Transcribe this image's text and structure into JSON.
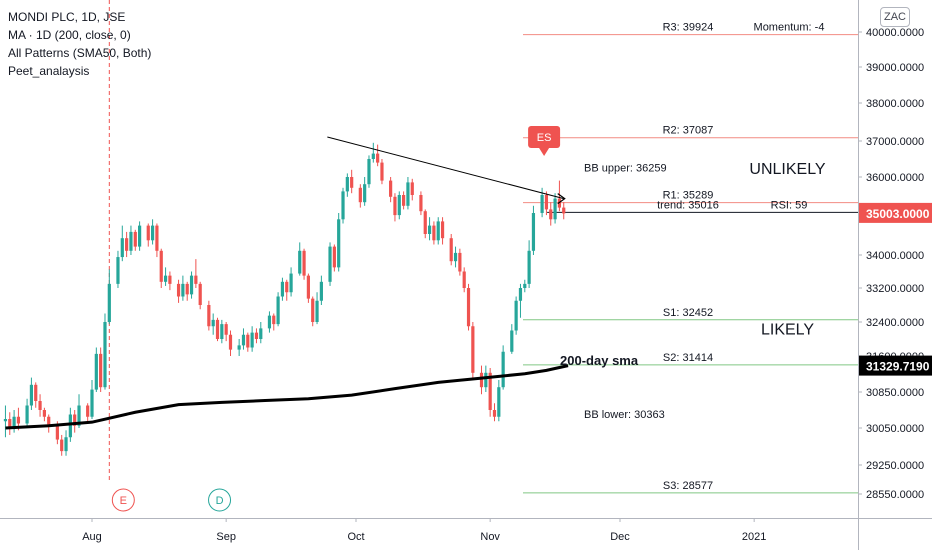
{
  "legend": {
    "title": "MONDI PLC, 1D, JSE",
    "indicators": [
      "MA · 1D (200, close, 0)",
      "All Patterns (SMA50, Both)",
      "Peet_analaysis"
    ]
  },
  "currency_label": "ZAC",
  "colors": {
    "up": "#26a69a",
    "down": "#ef5350",
    "resistance": "#f28b82",
    "support": "#81c784",
    "sma": "#000000",
    "trendline": "#000000",
    "price_badge": "#ef5350",
    "sma_badge": "#000000"
  },
  "chart_data": {
    "type": "candlestick",
    "title": "MONDI PLC, 1D, JSE",
    "y_axis": {
      "ylim": [
        28200,
        40600
      ],
      "ticks": [
        28550,
        29250,
        30050,
        30850,
        31600,
        32400,
        33200,
        34000,
        35000,
        36000,
        37000,
        38000,
        39000,
        40000
      ],
      "tick_labels": [
        "28550.0000",
        "29250.0000",
        "30050.0000",
        "30850.0000",
        "31600.0000",
        "32400.0000",
        "33200.0000",
        "34000.0000",
        "35000.0000",
        "36000.0000",
        "37000.0000",
        "38000.0000",
        "39000.0000",
        "40000.0000"
      ]
    },
    "x_axis": {
      "months": [
        {
          "label": "Aug",
          "day": 0
        },
        {
          "label": "Sep",
          "day": 31
        },
        {
          "label": "Oct",
          "day": 61
        },
        {
          "label": "Nov",
          "day": 92
        },
        {
          "label": "Dec",
          "day": 122
        },
        {
          "label": "2021",
          "day": 153
        }
      ],
      "day_range": [
        -20,
        174
      ]
    },
    "candles": [
      [
        -20,
        30200,
        30250,
        30550,
        29850
      ],
      [
        -19,
        30250,
        30050,
        30400,
        29900
      ],
      [
        -18,
        30050,
        30300,
        30450,
        29950
      ],
      [
        -17,
        30300,
        30150,
        30500,
        30000
      ],
      [
        -15,
        30150,
        30550,
        30700,
        30050
      ],
      [
        -14,
        30550,
        31000,
        31150,
        30450
      ],
      [
        -13,
        31000,
        30650,
        31050,
        30500
      ],
      [
        -12,
        30650,
        30450,
        30800,
        30300
      ],
      [
        -11,
        30450,
        30300,
        30500,
        30200
      ],
      [
        -10,
        30300,
        30100,
        30350,
        29950
      ],
      [
        -8,
        30100,
        29800,
        30200,
        29700
      ],
      [
        -7,
        29800,
        29550,
        29900,
        29450
      ],
      [
        -6,
        29550,
        29850,
        30000,
        29450
      ],
      [
        -5,
        29850,
        30350,
        30500,
        29750
      ],
      [
        -4,
        30350,
        30100,
        30450,
        29950
      ],
      [
        -3,
        30100,
        30550,
        30800,
        30050
      ],
      [
        -1,
        30550,
        30300,
        30600,
        30200
      ],
      [
        0,
        30300,
        30900,
        31100,
        30250
      ],
      [
        1,
        30900,
        31650,
        31800,
        30850
      ],
      [
        2,
        31650,
        30950,
        31800,
        30850
      ],
      [
        3,
        30950,
        32400,
        32600,
        30900
      ],
      [
        4,
        32400,
        33300,
        33650,
        32350
      ],
      [
        6,
        33300,
        33950,
        34100,
        33200
      ],
      [
        7,
        33950,
        34400,
        34700,
        33850
      ],
      [
        8,
        34400,
        34100,
        34550,
        33950
      ],
      [
        9,
        34100,
        34550,
        34700,
        34000
      ],
      [
        10,
        34550,
        34200,
        34600,
        34100
      ],
      [
        11,
        34200,
        34700,
        34800,
        34100
      ],
      [
        13,
        34700,
        34350,
        34750,
        34200
      ],
      [
        14,
        34350,
        34700,
        34850,
        34250
      ],
      [
        15,
        34700,
        34100,
        34750,
        33950
      ],
      [
        16,
        34100,
        33350,
        34150,
        33200
      ],
      [
        17,
        33350,
        33500,
        33700,
        33250
      ],
      [
        18,
        33500,
        33300,
        33600,
        33150
      ],
      [
        20,
        33300,
        33000,
        33400,
        32850
      ],
      [
        21,
        33000,
        33300,
        33500,
        32900
      ],
      [
        22,
        33300,
        33050,
        33350,
        32900
      ],
      [
        23,
        33050,
        33500,
        33600,
        32950
      ],
      [
        24,
        33500,
        33300,
        33900,
        33200
      ],
      [
        25,
        33300,
        32800,
        33350,
        32700
      ],
      [
        27,
        32800,
        32300,
        32900,
        32200
      ],
      [
        28,
        32300,
        32450,
        32600,
        32100
      ],
      [
        29,
        32450,
        32000,
        32500,
        31950
      ],
      [
        30,
        32000,
        32350,
        32450,
        31900
      ],
      [
        31,
        32350,
        32100,
        32400,
        31950
      ],
      [
        32,
        32100,
        31750,
        32200,
        31600
      ],
      [
        34,
        31750,
        31850,
        32000,
        31600
      ],
      [
        35,
        31850,
        32100,
        32250,
        31750
      ],
      [
        36,
        32100,
        31800,
        32150,
        31700
      ],
      [
        37,
        31800,
        32150,
        32300,
        31700
      ],
      [
        38,
        32150,
        32000,
        32250,
        31900
      ],
      [
        39,
        32000,
        32250,
        32400,
        31900
      ],
      [
        41,
        32250,
        32550,
        32650,
        32150
      ],
      [
        42,
        32550,
        32350,
        32600,
        32200
      ],
      [
        43,
        32350,
        33000,
        33100,
        32300
      ],
      [
        44,
        33000,
        33350,
        33450,
        32900
      ],
      [
        45,
        33350,
        33100,
        33400,
        32900
      ],
      [
        46,
        33100,
        33550,
        33700,
        33000
      ],
      [
        48,
        33550,
        34100,
        34300,
        33500
      ],
      [
        49,
        34100,
        33500,
        34150,
        33400
      ],
      [
        50,
        33500,
        32950,
        33550,
        32850
      ],
      [
        51,
        32950,
        32400,
        33000,
        32300
      ],
      [
        52,
        32400,
        32900,
        33100,
        32350
      ],
      [
        53,
        32900,
        33350,
        33500,
        32800
      ],
      [
        55,
        33350,
        34200,
        34300,
        33250
      ],
      [
        56,
        34200,
        33700,
        34250,
        33600
      ],
      [
        57,
        33700,
        34850,
        35000,
        33600
      ],
      [
        58,
        34850,
        35600,
        35700,
        34750
      ],
      [
        59,
        35600,
        36000,
        36100,
        35450
      ],
      [
        60,
        36000,
        35700,
        36200,
        35550
      ],
      [
        62,
        35700,
        35300,
        35800,
        35150
      ],
      [
        63,
        35300,
        35800,
        36000,
        35200
      ],
      [
        64,
        35800,
        36500,
        36600,
        35700
      ],
      [
        65,
        36500,
        36650,
        36950,
        36400
      ],
      [
        66,
        36650,
        36400,
        36900,
        36300
      ],
      [
        67,
        36400,
        35900,
        36500,
        35800
      ],
      [
        69,
        35900,
        35450,
        36000,
        35300
      ],
      [
        70,
        35450,
        34950,
        35550,
        34800
      ],
      [
        71,
        34950,
        35500,
        35600,
        34850
      ],
      [
        72,
        35500,
        35200,
        35600,
        35100
      ],
      [
        73,
        35200,
        35850,
        36000,
        35100
      ],
      [
        74,
        35850,
        35500,
        35950,
        35350
      ],
      [
        76,
        35500,
        35050,
        35600,
        34950
      ],
      [
        77,
        35050,
        34500,
        35100,
        34400
      ],
      [
        78,
        34500,
        34700,
        34900,
        34350
      ],
      [
        79,
        34700,
        34350,
        34800,
        34250
      ],
      [
        80,
        34350,
        34800,
        34900,
        34250
      ],
      [
        81,
        34800,
        34400,
        34900,
        34250
      ],
      [
        83,
        34400,
        33850,
        34500,
        33750
      ],
      [
        84,
        33850,
        34050,
        34200,
        33700
      ],
      [
        85,
        34050,
        33600,
        34150,
        33500
      ],
      [
        86,
        33600,
        33200,
        33700,
        33100
      ],
      [
        87,
        33200,
        32300,
        33300,
        32200
      ],
      [
        88,
        32300,
        31250,
        32400,
        31100
      ],
      [
        90,
        31250,
        30950,
        31400,
        30800
      ],
      [
        91,
        30950,
        31250,
        31400,
        30850
      ],
      [
        92,
        31250,
        30450,
        31350,
        30300
      ],
      [
        93,
        30450,
        30300,
        30600,
        30200
      ],
      [
        94,
        30300,
        30950,
        31100,
        30200
      ],
      [
        95,
        30950,
        31700,
        31850,
        30900
      ],
      [
        97,
        31700,
        32200,
        32350,
        31650
      ],
      [
        98,
        32200,
        32900,
        33000,
        32100
      ],
      [
        99,
        32900,
        33200,
        33300,
        32500
      ],
      [
        100,
        33200,
        33300,
        33400,
        33100
      ],
      [
        101,
        33300,
        34100,
        34350,
        33200
      ],
      [
        102,
        34100,
        35000,
        35200,
        34000
      ],
      [
        104,
        35000,
        35500,
        35700,
        34900
      ],
      [
        105,
        35500,
        35100,
        35600,
        34950
      ],
      [
        106,
        35100,
        34850,
        35300,
        34700
      ],
      [
        107,
        34850,
        35400,
        35550,
        34750
      ],
      [
        108,
        35400,
        35150,
        35900,
        35050
      ],
      [
        109,
        35150,
        34990,
        35300,
        34850
      ]
    ],
    "sma200": [
      [
        -20,
        30050
      ],
      [
        -10,
        30100
      ],
      [
        0,
        30180
      ],
      [
        10,
        30400
      ],
      [
        20,
        30570
      ],
      [
        30,
        30620
      ],
      [
        40,
        30660
      ],
      [
        50,
        30700
      ],
      [
        60,
        30780
      ],
      [
        70,
        30920
      ],
      [
        80,
        31050
      ],
      [
        90,
        31140
      ],
      [
        100,
        31230
      ],
      [
        105,
        31300
      ],
      [
        110,
        31400
      ]
    ],
    "trendline": {
      "from": [
        59,
        37000
      ],
      "to": [
        109,
        35400
      ]
    },
    "levels": [
      {
        "label": "R3: 39924",
        "value": 39924,
        "kind": "resistance",
        "extra": "Momentum: -4"
      },
      {
        "label": "R2: 37087",
        "value": 37087,
        "kind": "resistance"
      },
      {
        "label": "R1: 35289",
        "value": 35289,
        "kind": "resistance"
      },
      {
        "label": "trend: 35016",
        "value": 35016,
        "kind": "pivot",
        "extra": "RSI: 59"
      },
      {
        "label": "S1: 32452",
        "value": 32452,
        "kind": "support"
      },
      {
        "label": "S2: 31414",
        "value": 31414,
        "kind": "support"
      },
      {
        "label": "S3: 28577",
        "value": 28577,
        "kind": "support"
      }
    ],
    "annotations": [
      {
        "text": "BB upper: 36259",
        "value": 36259,
        "day": 131
      },
      {
        "text": "BB lower: 30363",
        "value": 30363,
        "day": 131
      },
      {
        "text": "UNLIKELY",
        "value": 36250,
        "day": 148
      },
      {
        "text": "LIKELY",
        "value": 32250,
        "day": 148
      },
      {
        "text": "200-day sma",
        "value": 31500,
        "day": 116
      },
      {
        "text": "ES",
        "value": 36750,
        "day": 104
      }
    ],
    "event_markers": [
      {
        "text": "E",
        "day": 4
      },
      {
        "text": "D",
        "day": 23
      }
    ],
    "event_line_day": 4,
    "last_price": {
      "label": "35003.0000",
      "value": 35003
    },
    "sma_value": {
      "label": "31329.7190",
      "value": 31329.719
    }
  }
}
